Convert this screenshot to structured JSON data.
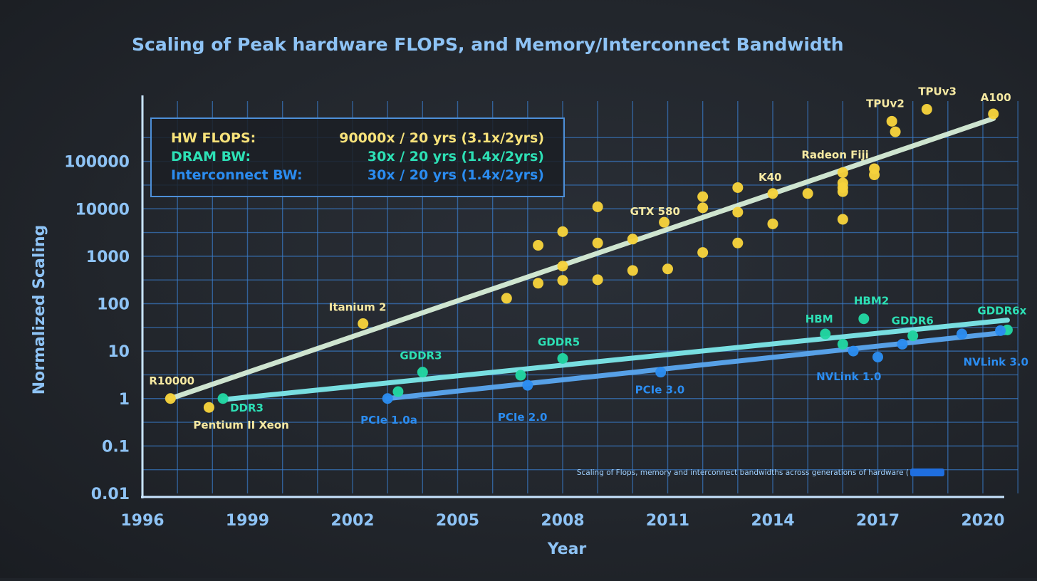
{
  "chart_data": {
    "type": "scatter",
    "title": "Scaling of Peak hardware FLOPS, and Memory/Interconnect Bandwidth",
    "xlabel": "Year",
    "ylabel": "Normalized Scaling",
    "y_scale": "log",
    "xlim": [
      1996,
      2021
    ],
    "ylim": [
      0.01,
      1000000
    ],
    "x_ticks": [
      "1996",
      "1999",
      "2002",
      "2005",
      "2008",
      "2011",
      "2014",
      "2017",
      "2020"
    ],
    "y_ticks": [
      "0.01",
      "0.1",
      "1",
      "10",
      "100",
      "1000",
      "10000",
      "100000"
    ],
    "grid": true,
    "note": "Scaling of Flops, memory and interconnect bandwidths across generations of hardware (",
    "legend": {
      "position": "top-left",
      "entries": [
        {
          "name": "HW FLOPS:",
          "rate": "90000x / 20 yrs (3.1x/2yrs)",
          "color": "#f7e27a"
        },
        {
          "name": "DRAM BW:",
          "rate": "30x / 20 yrs (1.4x/2yrs)",
          "color": "#2de0b5"
        },
        {
          "name": "Interconnect BW:",
          "rate": "30x / 20 yrs (1.4x/2yrs)",
          "color": "#2b8cf0"
        }
      ]
    },
    "series": [
      {
        "name": "HW FLOPS",
        "color": "#f5d23c",
        "trend": {
          "color": "#d8efd8",
          "from": [
            1996.8,
            1
          ],
          "to": [
            2020.3,
            800000
          ]
        },
        "points": [
          {
            "x": 1996.8,
            "y": 1,
            "label": "R10000"
          },
          {
            "x": 1997.9,
            "y": 0.65,
            "label": "Pentium II Xeon"
          },
          {
            "x": 2002.3,
            "y": 38,
            "label": "Itanium 2"
          },
          {
            "x": 2006.4,
            "y": 130
          },
          {
            "x": 2007.3,
            "y": 1700
          },
          {
            "x": 2007.3,
            "y": 270
          },
          {
            "x": 2008.0,
            "y": 3300
          },
          {
            "x": 2008.0,
            "y": 620
          },
          {
            "x": 2008.0,
            "y": 310
          },
          {
            "x": 2009.0,
            "y": 11000
          },
          {
            "x": 2009.0,
            "y": 1900
          },
          {
            "x": 2009.0,
            "y": 320
          },
          {
            "x": 2010.0,
            "y": 2300
          },
          {
            "x": 2010.0,
            "y": 500
          },
          {
            "x": 2010.9,
            "y": 5200,
            "label": "GTX 580"
          },
          {
            "x": 2011.0,
            "y": 540
          },
          {
            "x": 2012.0,
            "y": 18000
          },
          {
            "x": 2012.0,
            "y": 10500
          },
          {
            "x": 2012.0,
            "y": 1200
          },
          {
            "x": 2013.0,
            "y": 28000
          },
          {
            "x": 2013.0,
            "y": 8500
          },
          {
            "x": 2013.0,
            "y": 1900
          },
          {
            "x": 2014.0,
            "y": 21000,
            "label": "K40"
          },
          {
            "x": 2014.0,
            "y": 4800
          },
          {
            "x": 2015.0,
            "y": 21000
          },
          {
            "x": 2016.0,
            "y": 58000,
            "label": "Radeon Fiji"
          },
          {
            "x": 2016.0,
            "y": 35000
          },
          {
            "x": 2016.0,
            "y": 28000
          },
          {
            "x": 2016.0,
            "y": 23000
          },
          {
            "x": 2016.0,
            "y": 6000
          },
          {
            "x": 2016.9,
            "y": 70000
          },
          {
            "x": 2016.9,
            "y": 52000
          },
          {
            "x": 2017.4,
            "y": 700000,
            "label": "TPUv2"
          },
          {
            "x": 2017.5,
            "y": 420000
          },
          {
            "x": 2018.4,
            "y": 1250000,
            "label": "TPUv3"
          },
          {
            "x": 2020.3,
            "y": 1000000,
            "label": "A100"
          }
        ]
      },
      {
        "name": "DRAM BW",
        "color": "#22d6a2",
        "trend": {
          "color": "#7de8ea",
          "from": [
            1998.3,
            0.95
          ],
          "to": [
            2020.7,
            45
          ]
        },
        "points": [
          {
            "x": 1998.3,
            "y": 1,
            "label": "DDR3"
          },
          {
            "x": 2003.3,
            "y": 1.4
          },
          {
            "x": 2004.0,
            "y": 3.6,
            "label": "GDDR3"
          },
          {
            "x": 2006.8,
            "y": 3.1
          },
          {
            "x": 2008.0,
            "y": 7,
            "label": "GDDR5"
          },
          {
            "x": 2015.5,
            "y": 23,
            "label": "HBM"
          },
          {
            "x": 2016.0,
            "y": 14
          },
          {
            "x": 2016.6,
            "y": 48,
            "label": "HBM2"
          },
          {
            "x": 2018.0,
            "y": 21,
            "label": "GDDR6"
          },
          {
            "x": 2020.7,
            "y": 28,
            "label": "GDDR6x"
          }
        ]
      },
      {
        "name": "Interconnect BW",
        "color": "#2b8cf0",
        "trend": {
          "color": "#5aa7f0",
          "from": [
            2003.0,
            1
          ],
          "to": [
            2020.7,
            25
          ]
        },
        "points": [
          {
            "x": 2003.0,
            "y": 1,
            "label": "PCIe 1.0a"
          },
          {
            "x": 2007.0,
            "y": 1.9,
            "label": "PCIe 2.0"
          },
          {
            "x": 2010.8,
            "y": 3.6,
            "label": "PCIe 3.0"
          },
          {
            "x": 2016.3,
            "y": 10,
            "label": "NVLink 1.0"
          },
          {
            "x": 2017.0,
            "y": 7.5
          },
          {
            "x": 2017.7,
            "y": 14
          },
          {
            "x": 2019.4,
            "y": 23
          },
          {
            "x": 2020.5,
            "y": 27,
            "label": "NVLink 3.0"
          }
        ]
      }
    ]
  }
}
